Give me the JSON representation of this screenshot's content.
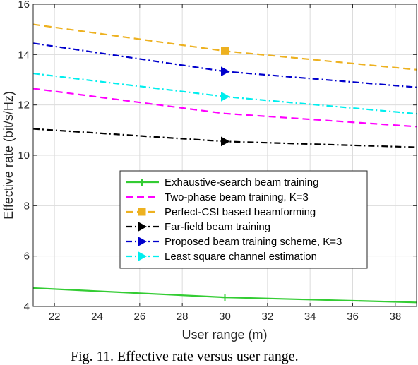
{
  "chart_data": {
    "type": "line",
    "xlabel": "User range (m)",
    "ylabel": "Effective rate (bit/s/Hz)",
    "xlim": [
      21,
      39
    ],
    "ylim": [
      4,
      16
    ],
    "x_ticks": [
      22,
      24,
      26,
      28,
      30,
      32,
      34,
      36,
      38
    ],
    "y_ticks": [
      4,
      6,
      8,
      10,
      12,
      14,
      16
    ],
    "grid": true,
    "legend_position": "center",
    "x": [
      21,
      30,
      39
    ],
    "series": [
      {
        "name": "Exhaustive-search beam training",
        "values": [
          4.73,
          4.36,
          4.16
        ],
        "color": "#33cc33",
        "dash": "solid",
        "marker": "plus"
      },
      {
        "name": "Two-phase beam training, K=3",
        "values": [
          12.65,
          11.66,
          11.14
        ],
        "color": "#ff00ff",
        "dash": "dashed",
        "marker": "none"
      },
      {
        "name": "Perfect-CSI based beamforming",
        "values": [
          15.2,
          14.14,
          13.4
        ],
        "color": "#edb120",
        "dash": "dashed",
        "marker": "square"
      },
      {
        "name": "Far-field beam training",
        "values": [
          11.05,
          10.55,
          10.32
        ],
        "color": "#000000",
        "dash": "dashdot",
        "marker": "triangle-right"
      },
      {
        "name": "Proposed beam training scheme, K=3",
        "values": [
          14.45,
          13.33,
          12.7
        ],
        "color": "#0000cc",
        "dash": "dashdot",
        "marker": "triangle-right"
      },
      {
        "name": "Least square channel estimation",
        "values": [
          13.25,
          12.33,
          11.65
        ],
        "color": "#00eeee",
        "dash": "dashdot",
        "marker": "triangle-right"
      }
    ]
  },
  "caption": "Fig. 11. Effective rate versus user range."
}
